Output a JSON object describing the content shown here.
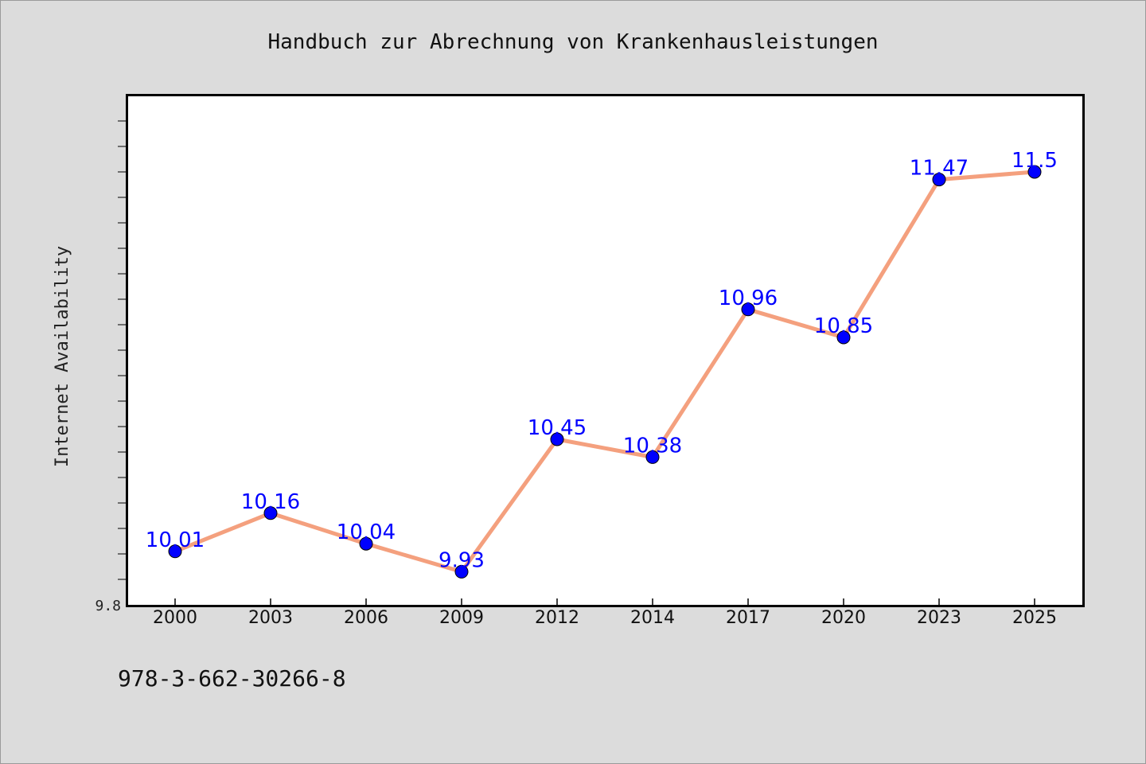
{
  "chart_data": {
    "type": "line",
    "title": "Handbuch zur Abrechnung von Krankenhausleistungen",
    "xlabel": "",
    "ylabel": "Internet Availability",
    "categories": [
      "2000",
      "2003",
      "2006",
      "2009",
      "2012",
      "2014",
      "2017",
      "2020",
      "2023",
      "2025"
    ],
    "values": [
      10.01,
      10.16,
      10.04,
      9.93,
      10.45,
      10.38,
      10.96,
      10.85,
      11.47,
      11.5
    ],
    "data_labels": [
      "10.01",
      "10.16",
      "10.04",
      "9.93",
      "10.45",
      "10.38",
      "10.96",
      "10.85",
      "11.47",
      "11.5"
    ],
    "ylim": [
      9.8,
      11.8
    ],
    "y_tick_labels": [
      "9.8"
    ],
    "grid": false,
    "line_color": "#f4a07e",
    "marker_color": "#0000ff",
    "label_color": "#0000ff"
  },
  "footer": {
    "isbn": "978-3-662-30266-8"
  },
  "colors": {
    "background": "#dcdcdc",
    "plot_background": "#ffffff"
  }
}
